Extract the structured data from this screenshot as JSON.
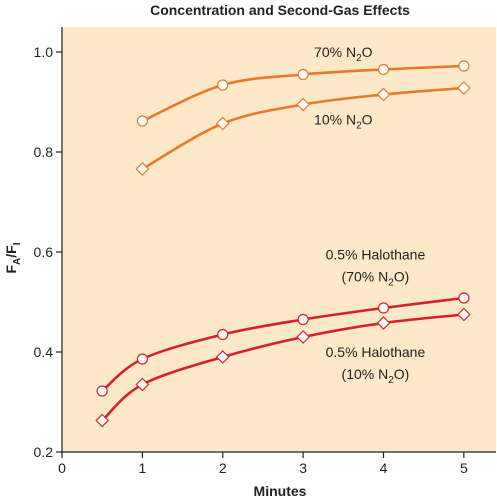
{
  "chart_data": {
    "type": "line",
    "title": "Concentration and Second-Gas Effects",
    "xlabel": "Minutes",
    "ylabel": {
      "base": "F",
      "sub1": "A",
      "slash": "/F",
      "sub2": "I"
    },
    "xlim": [
      0,
      5.4
    ],
    "ylim": [
      0.2,
      1.05
    ],
    "xticks": [
      0,
      1,
      2,
      3,
      4,
      5
    ],
    "yticks": [
      0.2,
      0.4,
      0.6,
      0.8,
      1.0
    ],
    "ytick_labels": [
      "0.2",
      "0.4",
      "0.6",
      "0.8",
      "1.0"
    ],
    "grid": false,
    "background": "#fde9c7",
    "series": [
      {
        "label_lines": [
          [
            "70% N",
            "2",
            "O"
          ]
        ],
        "label_at": [
          3.5,
          0.99
        ],
        "color": "#ea7a2a",
        "marker": "circle",
        "x": [
          1,
          2,
          3,
          4,
          5
        ],
        "y": [
          0.862,
          0.934,
          0.955,
          0.965,
          0.972
        ]
      },
      {
        "label_lines": [
          [
            "10% N",
            "2",
            "O"
          ]
        ],
        "label_at": [
          3.5,
          0.855
        ],
        "color": "#ea7a2a",
        "marker": "diamond",
        "x": [
          1,
          2,
          3,
          4,
          5
        ],
        "y": [
          0.766,
          0.857,
          0.895,
          0.915,
          0.928
        ]
      },
      {
        "label_lines": [
          [
            "0.5% Halothane"
          ],
          [
            "(70% N",
            "2",
            "O)"
          ]
        ],
        "label_at": [
          3.9,
          0.585
        ],
        "color": "#d8202c",
        "marker": "circle",
        "x": [
          0.5,
          1,
          2,
          3,
          4,
          5
        ],
        "y": [
          0.322,
          0.386,
          0.435,
          0.465,
          0.488,
          0.508
        ]
      },
      {
        "label_lines": [
          [
            "0.5% Halothane"
          ],
          [
            "(10% N",
            "2",
            "O)"
          ]
        ],
        "label_at": [
          3.9,
          0.39
        ],
        "color": "#d8202c",
        "marker": "diamond",
        "x": [
          0.5,
          1,
          2,
          3,
          4,
          5
        ],
        "y": [
          0.263,
          0.335,
          0.39,
          0.43,
          0.458,
          0.475
        ]
      }
    ]
  }
}
